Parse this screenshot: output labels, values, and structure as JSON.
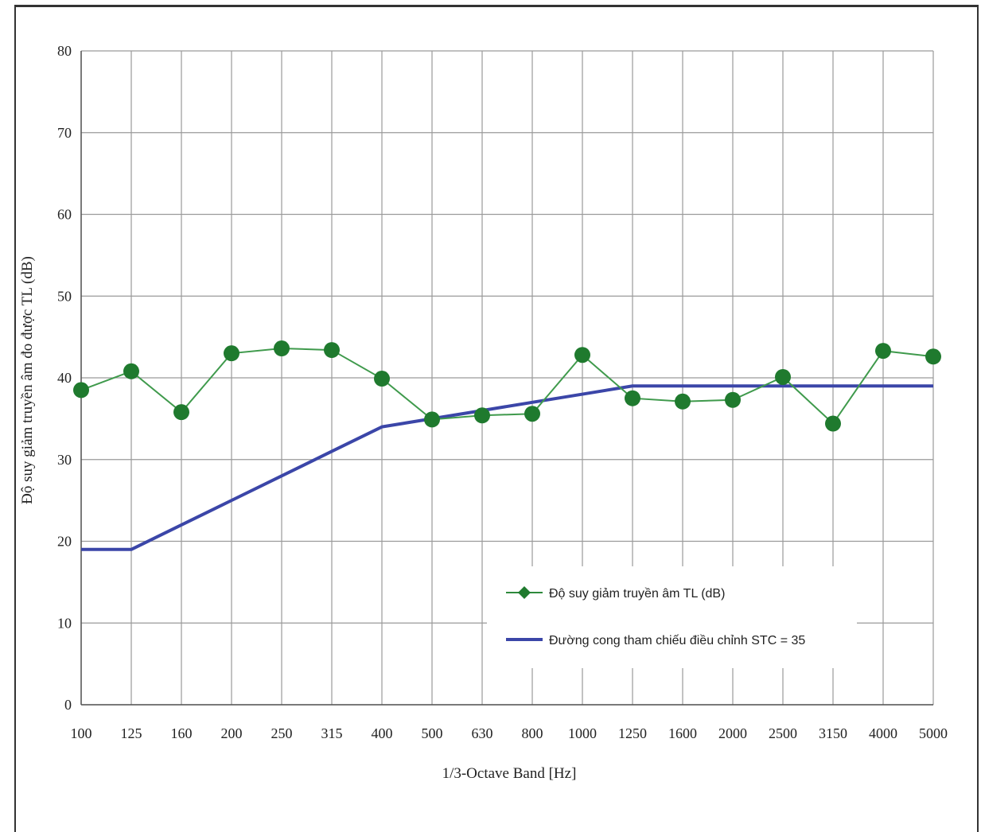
{
  "chart_data": {
    "type": "line",
    "xlabel": "1/3-Octave Band [Hz]",
    "ylabel": "Độ suy giảm truyền âm đo được TL (dB)",
    "ylim": [
      0,
      80
    ],
    "yticks": [
      "0",
      "10",
      "20",
      "30",
      "40",
      "50",
      "60",
      "70",
      "80"
    ],
    "categories": [
      "100",
      "125",
      "160",
      "200",
      "250",
      "315",
      "400",
      "500",
      "630",
      "800",
      "1000",
      "1250",
      "1600",
      "2000",
      "2500",
      "3150",
      "4000",
      "5000"
    ],
    "grid": true,
    "legend_position": "lower-right",
    "series": [
      {
        "name": "Độ suy giảm truyền âm TL (dB)",
        "color": "#1f7a2e",
        "marker": "circle",
        "values": [
          38.5,
          40.8,
          35.8,
          43.0,
          43.6,
          43.4,
          39.9,
          34.9,
          35.4,
          35.6,
          42.8,
          37.5,
          37.1,
          37.3,
          40.1,
          34.4,
          43.3,
          42.6
        ]
      },
      {
        "name": "Đường cong tham chiếu điều chỉnh STC = 35",
        "color": "#3b46a8",
        "marker": "none",
        "values": [
          19,
          19,
          22,
          25,
          28,
          31,
          34,
          35,
          36,
          37,
          38,
          39,
          39,
          39,
          39,
          39,
          39,
          39
        ]
      }
    ]
  }
}
